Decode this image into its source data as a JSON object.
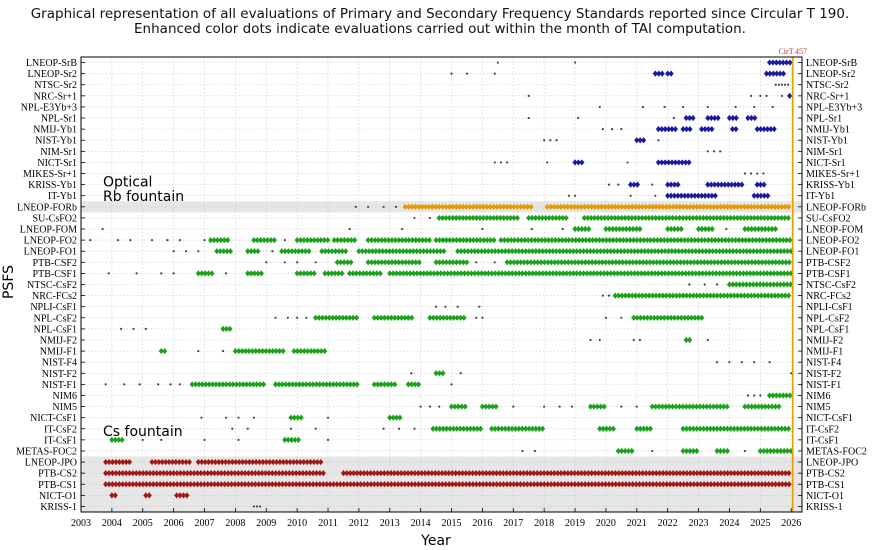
{
  "chart_data": {
    "type": "scatter",
    "title": "Graphical representation of all evaluations of Primary and Secondary Frequency Standards reported since Circular T 190.",
    "subtitle": "Enhanced color dots indicate evaluations carried out within the month of TAI computation.",
    "xlabel": "Year",
    "ylabel": "PSFS",
    "xlim": [
      2003,
      2026.35
    ],
    "x_ticks": [
      "2003",
      "2004",
      "2005",
      "2006",
      "2007",
      "2008",
      "2009",
      "2010",
      "2011",
      "2012",
      "2013",
      "2014",
      "2015",
      "2016",
      "2017",
      "2018",
      "2019",
      "2020",
      "2021",
      "2022",
      "2023",
      "2024",
      "2025",
      "2026"
    ],
    "grid": true,
    "marker_line": {
      "label": "CirT.457",
      "x": 2026.05,
      "color": "#e8a000"
    },
    "groups": [
      {
        "label": "Optical"
      },
      {
        "label": "Rb fountain"
      },
      {
        "label": "Cs fountain"
      }
    ],
    "colors": {
      "optical": "#1a1aa0",
      "rb": "#e39b00",
      "cs_fountain": "#1aa31a",
      "cs_beam": "#a01818",
      "reported": "#444444",
      "band": "#e6e6e6"
    },
    "standards": [
      {
        "name": "LNEOP-SrB",
        "color": "optical",
        "segments": [
          [
            2025.3,
            2026.0
          ]
        ],
        "dots": [
          2016.5,
          2019.0
        ]
      },
      {
        "name": "LNEOP-Sr2",
        "color": "optical",
        "segments": [
          [
            2021.6,
            2021.85
          ],
          [
            2022.0,
            2022.2
          ],
          [
            2025.2,
            2025.8
          ]
        ],
        "dots": [
          2015.0,
          2015.5,
          2016.4
        ]
      },
      {
        "name": "NTSC-Sr2",
        "color": "optical",
        "segments": [],
        "dots": [
          2025.5,
          2025.6,
          2025.7,
          2025.8,
          2025.9
        ]
      },
      {
        "name": "NRC-Sr+1",
        "color": "optical",
        "segments": [
          [
            2025.95,
            2026.0
          ]
        ],
        "dots": [
          2017.5,
          2024.7,
          2025.0,
          2025.2,
          2025.7
        ]
      },
      {
        "name": "NPL-E3Yb+3",
        "color": "optical",
        "segments": [],
        "dots": [
          2019.8,
          2021.2,
          2021.9,
          2022.5,
          2023.3,
          2024.2,
          2024.8,
          2025.4
        ]
      },
      {
        "name": "NPL-Sr1",
        "color": "optical",
        "segments": [
          [
            2022.6,
            2022.9
          ],
          [
            2023.3,
            2023.7
          ],
          [
            2024.0,
            2024.3
          ],
          [
            2024.6,
            2024.85
          ]
        ],
        "dots": [
          2017.5,
          2019.1,
          2022.2
        ]
      },
      {
        "name": "NMIJ-Yb1",
        "color": "optical",
        "segments": [
          [
            2021.7,
            2022.3
          ],
          [
            2022.5,
            2022.8
          ],
          [
            2023.1,
            2023.5
          ],
          [
            2024.1,
            2024.3
          ],
          [
            2024.9,
            2025.5
          ]
        ],
        "dots": [
          2019.9,
          2020.2,
          2020.5
        ]
      },
      {
        "name": "NIST-Yb1",
        "color": "optical",
        "segments": [
          [
            2021.0,
            2021.3
          ]
        ],
        "dots": [
          2018.0,
          2018.2,
          2018.4,
          2021.7
        ]
      },
      {
        "name": "NIM-Sr1",
        "color": "optical",
        "segments": [],
        "dots": [
          2023.3,
          2023.5,
          2023.7
        ]
      },
      {
        "name": "NICT-Sr1",
        "color": "optical",
        "segments": [
          [
            2019.0,
            2019.3
          ],
          [
            2021.7,
            2022.8
          ]
        ],
        "dots": [
          2016.4,
          2016.6,
          2016.8,
          2018.1,
          2020.7
        ]
      },
      {
        "name": "MIKES-Sr+1",
        "color": "optical",
        "segments": [],
        "dots": [
          2024.5,
          2024.7,
          2024.9,
          2025.1
        ]
      },
      {
        "name": "KRISS-Yb1",
        "color": "optical",
        "segments": [
          [
            2020.8,
            2021.1
          ],
          [
            2022.0,
            2022.4
          ],
          [
            2023.3,
            2024.5
          ],
          [
            2024.9,
            2025.2
          ]
        ],
        "dots": [
          2020.1,
          2020.4,
          2021.5
        ]
      },
      {
        "name": "IT-Yb1",
        "color": "optical",
        "segments": [
          [
            2022.0,
            2023.6
          ],
          [
            2024.8,
            2025.3
          ]
        ],
        "dots": [
          2018.8,
          2019.0,
          2020.8,
          2021.6
        ]
      },
      {
        "name": "LNEOP-FORb",
        "color": "rb",
        "segments": [
          [
            2013.5,
            2017.6
          ],
          [
            2018.1,
            2026.0
          ]
        ],
        "dots": [
          2011.9,
          2012.3,
          2012.8,
          2013.2
        ]
      },
      {
        "name": "SU-CsFO2",
        "color": "cs_fountain",
        "segments": [
          [
            2014.6,
            2017.2
          ],
          [
            2017.5,
            2018.8
          ],
          [
            2019.3,
            2026.0
          ]
        ],
        "dots": [
          2013.8,
          2014.3
        ]
      },
      {
        "name": "LNEOP-FOM",
        "color": "cs_fountain",
        "segments": [
          [
            2019.0,
            2019.5
          ],
          [
            2020.0,
            2021.2
          ],
          [
            2022.0,
            2022.5
          ],
          [
            2023.0,
            2023.5
          ],
          [
            2024.5,
            2025.5
          ]
        ],
        "dots": [
          2003.7,
          2011.7,
          2013.4,
          2016.0,
          2017.6,
          2018.6,
          2023.9
        ]
      },
      {
        "name": "LNEOP-FO2",
        "color": "cs_fountain",
        "segments": [
          [
            2007.2,
            2007.8
          ],
          [
            2008.6,
            2009.3
          ],
          [
            2010.0,
            2011.0
          ],
          [
            2011.2,
            2011.9
          ],
          [
            2012.3,
            2014.3
          ],
          [
            2014.5,
            2016.4
          ],
          [
            2016.6,
            2026.0
          ]
        ],
        "dots": [
          2003.3,
          2004.2,
          2004.6,
          2005.3,
          2005.8,
          2006.2,
          2007.0,
          2009.6
        ]
      },
      {
        "name": "LNEOP-FO1",
        "color": "cs_fountain",
        "segments": [
          [
            2007.4,
            2007.9
          ],
          [
            2008.4,
            2008.8
          ],
          [
            2009.5,
            2010.4
          ],
          [
            2010.8,
            2011.6
          ],
          [
            2012.0,
            2014.8
          ],
          [
            2015.2,
            2026.0
          ]
        ],
        "dots": [
          2006.0,
          2006.4,
          2006.8,
          2009.2
        ]
      },
      {
        "name": "PTB-CSF2",
        "color": "cs_fountain",
        "segments": [
          [
            2011.3,
            2011.8
          ],
          [
            2012.3,
            2014.0
          ],
          [
            2014.5,
            2015.5
          ],
          [
            2016.8,
            2026.0
          ]
        ],
        "dots": [
          2009.0,
          2009.6,
          2010.0,
          2010.6,
          2015.8,
          2016.4
        ]
      },
      {
        "name": "PTB-CSF1",
        "color": "cs_fountain",
        "segments": [
          [
            2006.8,
            2007.3
          ],
          [
            2008.4,
            2008.9
          ],
          [
            2010.0,
            2010.6
          ],
          [
            2010.9,
            2011.5
          ],
          [
            2011.7,
            2012.7
          ],
          [
            2013.0,
            2026.0
          ]
        ],
        "dots": [
          2003.9,
          2004.8,
          2005.6,
          2006.0,
          2007.7
        ]
      },
      {
        "name": "NTSC-CsF2",
        "color": "cs_fountain",
        "segments": [
          [
            2024.0,
            2026.0
          ]
        ],
        "dots": [
          2022.7,
          2023.2,
          2023.6
        ]
      },
      {
        "name": "NRC-FCs2",
        "color": "cs_fountain",
        "segments": [
          [
            2020.3,
            2026.0
          ]
        ],
        "dots": [
          2019.9,
          2020.1
        ]
      },
      {
        "name": "NPLI-CsF1",
        "color": "cs_fountain",
        "segments": [],
        "dots": [
          2014.5,
          2014.8,
          2015.2,
          2015.9
        ]
      },
      {
        "name": "NPL-CsF2",
        "color": "cs_fountain",
        "segments": [
          [
            2010.6,
            2012.0
          ],
          [
            2012.5,
            2013.8
          ],
          [
            2014.3,
            2015.5
          ],
          [
            2020.9,
            2023.2
          ]
        ],
        "dots": [
          2009.3,
          2009.7,
          2010.0,
          2010.3,
          2015.8,
          2016.0,
          2020.0,
          2020.5
        ]
      },
      {
        "name": "NPL-CsF1",
        "color": "cs_fountain",
        "segments": [
          [
            2007.6,
            2007.9
          ]
        ],
        "dots": [
          2004.3,
          2004.7,
          2005.1
        ]
      },
      {
        "name": "NMIJ-F2",
        "color": "cs_fountain",
        "segments": [
          [
            2022.6,
            2022.8
          ]
        ],
        "dots": [
          2019.5,
          2019.8,
          2020.9,
          2021.1,
          2023.3
        ]
      },
      {
        "name": "NMIJ-F1",
        "color": "cs_fountain",
        "segments": [
          [
            2005.6,
            2005.8
          ],
          [
            2008.0,
            2009.6
          ],
          [
            2009.9,
            2011.0
          ]
        ],
        "dots": [
          2006.8,
          2007.6
        ]
      },
      {
        "name": "NIST-F4",
        "color": "cs_fountain",
        "segments": [],
        "dots": [
          2023.6,
          2024.0,
          2024.4,
          2024.8,
          2025.3
        ]
      },
      {
        "name": "NIST-F2",
        "color": "cs_fountain",
        "segments": [
          [
            2014.5,
            2014.8
          ]
        ],
        "dots": [
          2013.7,
          2015.3,
          2026.0
        ]
      },
      {
        "name": "NIST-F1",
        "color": "cs_fountain",
        "segments": [
          [
            2006.6,
            2009.0
          ],
          [
            2009.3,
            2012.0
          ],
          [
            2012.5,
            2013.2
          ],
          [
            2013.6,
            2014.0
          ]
        ],
        "dots": [
          2003.8,
          2004.4,
          2004.9,
          2005.5,
          2005.9,
          2006.2,
          2015.0
        ]
      },
      {
        "name": "NIM6",
        "color": "cs_fountain",
        "segments": [
          [
            2025.3,
            2026.0
          ]
        ],
        "dots": [
          2024.6,
          2024.8,
          2025.0
        ]
      },
      {
        "name": "NIM5",
        "color": "cs_fountain",
        "segments": [
          [
            2015.0,
            2015.5
          ],
          [
            2016.0,
            2016.5
          ],
          [
            2019.5,
            2020.0
          ],
          [
            2021.5,
            2024.0
          ],
          [
            2024.5,
            2025.7
          ]
        ],
        "dots": [
          2014.0,
          2014.3,
          2014.6,
          2017.0,
          2018.0,
          2018.5,
          2018.9,
          2020.5,
          2021.0
        ]
      },
      {
        "name": "NICT-CsF1",
        "color": "cs_fountain",
        "segments": [
          [
            2009.8,
            2010.2
          ],
          [
            2013.0,
            2013.4
          ]
        ],
        "dots": [
          2006.9,
          2007.7,
          2008.1,
          2008.6,
          2011.0
        ]
      },
      {
        "name": "IT-CsF2",
        "color": "cs_fountain",
        "segments": [
          [
            2014.4,
            2016.0
          ],
          [
            2016.3,
            2018.0
          ],
          [
            2019.8,
            2020.3
          ],
          [
            2021.0,
            2021.5
          ],
          [
            2022.5,
            2026.0
          ]
        ],
        "dots": [
          2007.9,
          2008.4,
          2009.8,
          2010.6,
          2012.8,
          2013.3,
          2013.8
        ]
      },
      {
        "name": "IT-CsF1",
        "color": "cs_fountain",
        "segments": [
          [
            2004.0,
            2004.4
          ],
          [
            2009.6,
            2010.1
          ]
        ],
        "dots": [
          2005.0,
          2005.6,
          2007.0,
          2008.1,
          2011.0
        ]
      },
      {
        "name": "METAS-FOC2",
        "color": "cs_fountain",
        "segments": [
          [
            2020.4,
            2020.9
          ],
          [
            2022.5,
            2023.0
          ],
          [
            2023.6,
            2024.0
          ],
          [
            2025.0,
            2026.0
          ]
        ],
        "dots": [
          2017.3,
          2017.7,
          2021.5,
          2024.5
        ]
      },
      {
        "name": "LNEOP-JPO",
        "color": "cs_beam",
        "segments": [
          [
            2003.8,
            2004.6
          ],
          [
            2005.3,
            2006.6
          ],
          [
            2006.8,
            2010.8
          ]
        ],
        "dots": []
      },
      {
        "name": "PTB-CS2",
        "color": "cs_beam",
        "segments": [
          [
            2003.8,
            2010.9
          ],
          [
            2011.5,
            2026.0
          ]
        ],
        "dots": []
      },
      {
        "name": "PTB-CS1",
        "color": "cs_beam",
        "segments": [
          [
            2003.8,
            2026.0
          ]
        ],
        "dots": []
      },
      {
        "name": "NICT-O1",
        "color": "cs_beam",
        "segments": [
          [
            2004.0,
            2004.2
          ],
          [
            2005.1,
            2005.3
          ],
          [
            2006.1,
            2006.5
          ]
        ],
        "dots": []
      },
      {
        "name": "KRISS-1",
        "color": "cs_beam",
        "segments": [],
        "dots": [
          2008.6,
          2008.7,
          2008.8
        ]
      }
    ]
  }
}
